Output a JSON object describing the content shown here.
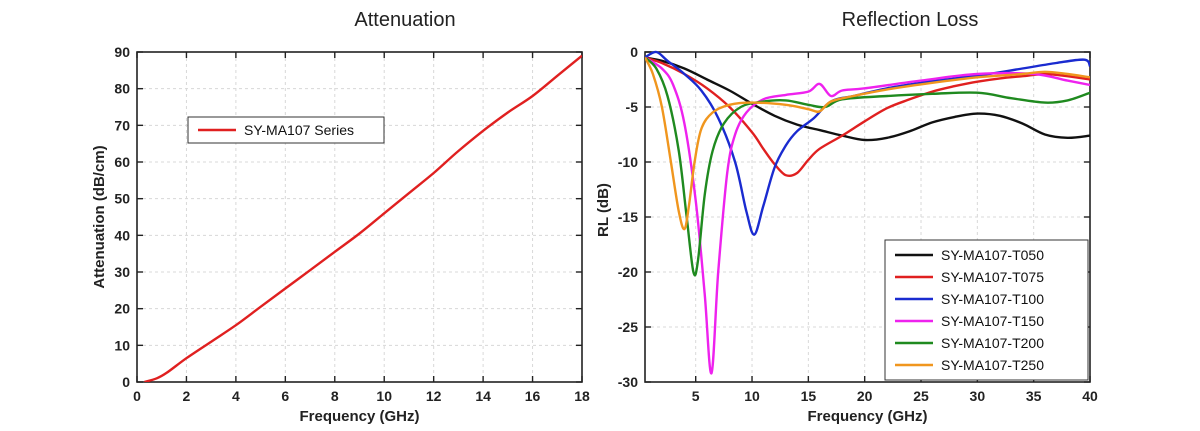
{
  "chart_data": [
    {
      "type": "line",
      "title": "Attenuation",
      "xlabel": "Frequency (GHz)",
      "ylabel": "Attenuation (dB/cm)",
      "xlim": [
        0,
        18
      ],
      "ylim": [
        0,
        90
      ],
      "xticks": [
        "0",
        "2",
        "4",
        "6",
        "8",
        "10",
        "12",
        "14",
        "16",
        "18"
      ],
      "yticks": [
        "0",
        "10",
        "20",
        "30",
        "40",
        "50",
        "60",
        "70",
        "80",
        "90"
      ],
      "grid": true,
      "legend_position": "top-left",
      "series": [
        {
          "name": "SY-MA107 Series",
          "color": "#e02020",
          "x": [
            0.3,
            0.8,
            1.2,
            2.0,
            3.0,
            4.0,
            5.0,
            6.0,
            7.0,
            8.0,
            9.0,
            10.0,
            11.0,
            12.0,
            13.0,
            14.0,
            15.0,
            16.0,
            17.0,
            18.0
          ],
          "y": [
            0.0,
            1.0,
            2.5,
            6.5,
            11.0,
            15.5,
            20.5,
            25.5,
            30.5,
            35.5,
            40.5,
            46.0,
            51.5,
            57.0,
            63.0,
            68.5,
            73.5,
            78.0,
            83.5,
            89.0
          ]
        }
      ]
    },
    {
      "type": "line",
      "title": "Reflection Loss",
      "xlabel": "Frequency (GHz)",
      "ylabel": "RL (dB)",
      "xlim": [
        0.5,
        40
      ],
      "ylim": [
        -30,
        0
      ],
      "xticks": [
        "5",
        "10",
        "15",
        "20",
        "25",
        "30",
        "35",
        "40"
      ],
      "yticks": [
        "0",
        "-5",
        "-10",
        "-15",
        "-20",
        "-25",
        "-30"
      ],
      "grid": true,
      "legend_position": "bottom-right",
      "series": [
        {
          "name": "SY-MA107-T050",
          "color": "#111111",
          "x": [
            0.5,
            2,
            4,
            6,
            8,
            10,
            12,
            14,
            16,
            18,
            20,
            22,
            24,
            26,
            28,
            30,
            32,
            34,
            36,
            38,
            40
          ],
          "y": [
            -0.5,
            -0.8,
            -1.5,
            -2.5,
            -3.5,
            -4.7,
            -5.8,
            -6.6,
            -7.1,
            -7.6,
            -8.0,
            -7.8,
            -7.2,
            -6.4,
            -5.9,
            -5.6,
            -5.8,
            -6.5,
            -7.5,
            -7.8,
            -7.6
          ]
        },
        {
          "name": "SY-MA107-T075",
          "color": "#e02020",
          "x": [
            0.5,
            2,
            4,
            6,
            8,
            10,
            11,
            12,
            13,
            14,
            15,
            16,
            18,
            20,
            22,
            24,
            26,
            28,
            30,
            32,
            34,
            36,
            38,
            40
          ],
          "y": [
            -0.5,
            -1.0,
            -2.0,
            -3.3,
            -5.0,
            -7.3,
            -8.8,
            -10.2,
            -11.2,
            -11.0,
            -9.8,
            -8.8,
            -7.6,
            -6.3,
            -5.1,
            -4.3,
            -3.6,
            -3.1,
            -2.7,
            -2.4,
            -2.2,
            -2.0,
            -2.2,
            -2.5
          ]
        },
        {
          "name": "SY-MA107-T100",
          "color": "#1a2bd0",
          "x": [
            0.5,
            1.5,
            2.5,
            4,
            5.5,
            7,
            8.5,
            9.5,
            10.2,
            11,
            12,
            13,
            14,
            15.5,
            17,
            19,
            22,
            25,
            28,
            31,
            34,
            37,
            39.5,
            40
          ],
          "y": [
            -0.5,
            0.0,
            -0.8,
            -2.0,
            -3.5,
            -6.0,
            -10.0,
            -14.5,
            -16.6,
            -14.0,
            -10.5,
            -8.5,
            -7.2,
            -6.0,
            -4.5,
            -4.0,
            -3.3,
            -2.8,
            -2.4,
            -2.0,
            -1.5,
            -1.0,
            -0.7,
            -1.3
          ]
        },
        {
          "name": "SY-MA107-T150",
          "color": "#ee22ee",
          "x": [
            0.5,
            2,
            3,
            4,
            5,
            5.8,
            6.4,
            7,
            7.8,
            8.5,
            9.5,
            11,
            13,
            15,
            16,
            17,
            18,
            20,
            25,
            30,
            35,
            38,
            40
          ],
          "y": [
            -0.5,
            -1.5,
            -3.0,
            -6.5,
            -13.5,
            -22.0,
            -29.2,
            -20.0,
            -11.0,
            -7.5,
            -5.5,
            -4.3,
            -3.9,
            -3.6,
            -2.9,
            -4.0,
            -3.5,
            -3.3,
            -2.6,
            -2.0,
            -2.0,
            -2.6,
            -3.0
          ]
        },
        {
          "name": "SY-MA107-T200",
          "color": "#1f8a1f",
          "x": [
            0.5,
            1.5,
            2.5,
            3.5,
            4.2,
            4.8,
            5.2,
            5.8,
            6.5,
            7.5,
            9,
            11,
            13,
            15,
            16.5,
            18,
            22,
            26,
            30,
            33,
            36,
            38,
            40
          ],
          "y": [
            -0.5,
            -1.5,
            -4.0,
            -9.0,
            -15.0,
            -20.0,
            -19.0,
            -13.0,
            -9.0,
            -6.5,
            -5.0,
            -4.5,
            -4.4,
            -4.8,
            -5.0,
            -4.3,
            -4.0,
            -3.8,
            -3.7,
            -4.2,
            -4.6,
            -4.4,
            -3.7
          ]
        },
        {
          "name": "SY-MA107-T250",
          "color": "#f0961e",
          "x": [
            0.5,
            1.2,
            2.0,
            2.8,
            3.5,
            4.0,
            4.4,
            4.9,
            5.5,
            6.5,
            8,
            10,
            13,
            15,
            16,
            17,
            19,
            22,
            26,
            30,
            34,
            36,
            38,
            40
          ],
          "y": [
            -0.5,
            -2.0,
            -5.0,
            -10.0,
            -14.5,
            -16.1,
            -14.0,
            -10.0,
            -7.0,
            -5.5,
            -4.8,
            -4.6,
            -4.8,
            -5.2,
            -5.4,
            -4.5,
            -4.0,
            -3.4,
            -2.8,
            -2.3,
            -2.0,
            -1.8,
            -2.0,
            -2.3
          ]
        }
      ]
    }
  ]
}
